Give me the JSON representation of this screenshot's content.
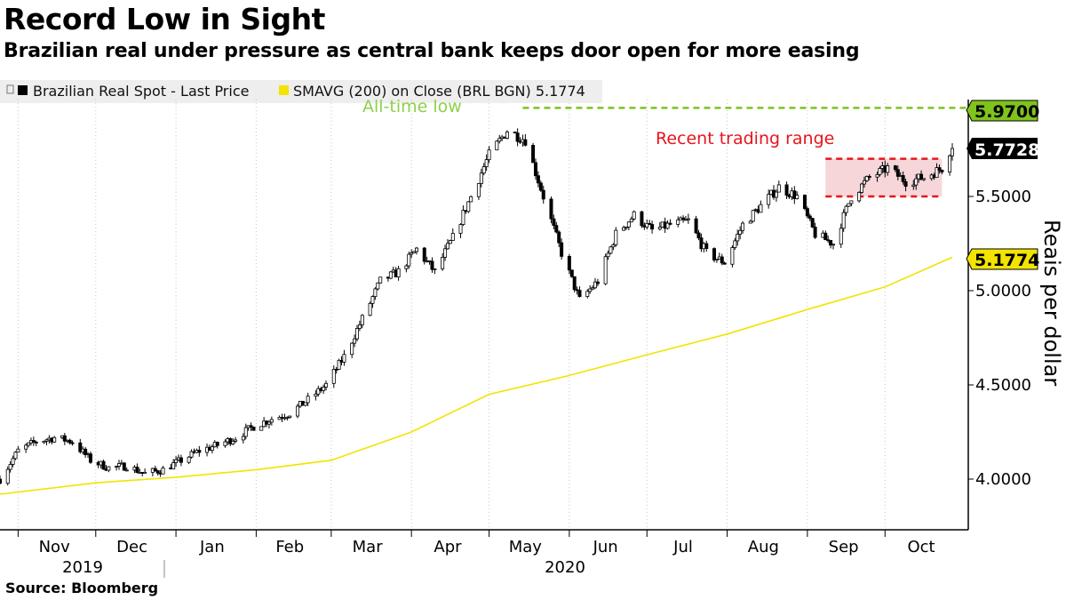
{
  "title": "Record Low in Sight",
  "subtitle": "Brazilian real under pressure as central bank keeps door open for more easing",
  "source": "Source: Bloomberg",
  "legend": [
    {
      "label": "Brazilian Real Spot - Last Price",
      "color": "#000000"
    },
    {
      "label": "SMAVG (200)  on Close (BRL BGN) 5.1774",
      "color": "#f2e400"
    }
  ],
  "colors": {
    "candle": "#000000",
    "sma": "#f2e400",
    "all_time_low": "#7fc31c",
    "range": "#e8141c",
    "range_fill": "#f6cfd4"
  },
  "annotations": {
    "all_time_low_label": "All-time low",
    "range_label": "Recent trading range",
    "all_time_low_tag": "5.9700",
    "last_price_tag": "5.7728",
    "sma_tag": "5.1774"
  },
  "chart_data": {
    "type": "candlestick",
    "title": "Record Low in Sight",
    "subtitle": "Brazilian real under pressure as central bank keeps door open for more easing",
    "ylabel": "Reais per dollar",
    "ylim": [
      3.7,
      6.05
    ],
    "yticks": [
      "4.0000",
      "4.5000",
      "5.0000",
      "5.5000"
    ],
    "xlabel_months": [
      "Nov",
      "Dec",
      "Jan",
      "Feb",
      "Mar",
      "Apr",
      "May",
      "Jun",
      "Jul",
      "Aug",
      "Sep",
      "Oct"
    ],
    "xlabel_years": [
      "2019",
      "2020"
    ],
    "x_start": "2019-10-25",
    "x_end": "2020-10-27",
    "grid": "vertical dotted",
    "legend_position": "top-left",
    "reference_lines": [
      {
        "name": "All-time low",
        "value": 5.97
      }
    ],
    "range_band": {
      "label": "Recent trading range",
      "low": 5.5,
      "high": 5.7,
      "from": "2020-09-08",
      "to": "2020-10-23"
    },
    "last_price": 5.7728,
    "series": [
      {
        "name": "Brazilian Real Spot - Last Price",
        "kind": "weekly close",
        "x": [
          "2019-10-25",
          "2019-11-01",
          "2019-11-08",
          "2019-11-15",
          "2019-11-22",
          "2019-11-29",
          "2019-12-06",
          "2019-12-13",
          "2019-12-20",
          "2019-12-27",
          "2020-01-03",
          "2020-01-10",
          "2020-01-17",
          "2020-01-24",
          "2020-01-31",
          "2020-02-07",
          "2020-02-14",
          "2020-02-21",
          "2020-02-28",
          "2020-03-06",
          "2020-03-13",
          "2020-03-20",
          "2020-03-27",
          "2020-04-03",
          "2020-04-10",
          "2020-04-17",
          "2020-04-24",
          "2020-05-01",
          "2020-05-08",
          "2020-05-15",
          "2020-05-22",
          "2020-05-29",
          "2020-06-05",
          "2020-06-12",
          "2020-06-19",
          "2020-06-26",
          "2020-07-03",
          "2020-07-10",
          "2020-07-17",
          "2020-07-24",
          "2020-07-31",
          "2020-08-07",
          "2020-08-14",
          "2020-08-21",
          "2020-08-28",
          "2020-09-04",
          "2020-09-11",
          "2020-09-18",
          "2020-09-25",
          "2020-10-02",
          "2020-10-09",
          "2020-10-16",
          "2020-10-23",
          "2020-10-27"
        ],
        "values": [
          4.0,
          4.15,
          4.2,
          4.22,
          4.2,
          4.1,
          4.06,
          4.07,
          4.03,
          4.05,
          4.1,
          4.15,
          4.18,
          4.22,
          4.28,
          4.32,
          4.35,
          4.42,
          4.5,
          4.65,
          4.85,
          5.05,
          5.1,
          5.22,
          5.1,
          5.28,
          5.5,
          5.72,
          5.85,
          5.8,
          5.5,
          5.2,
          4.95,
          5.05,
          5.3,
          5.4,
          5.32,
          5.35,
          5.37,
          5.2,
          5.15,
          5.35,
          5.45,
          5.55,
          5.5,
          5.3,
          5.25,
          5.5,
          5.6,
          5.65,
          5.58,
          5.6,
          5.65,
          5.7728
        ]
      },
      {
        "name": "SMAVG (200)  on Close (BRL BGN) 5.1774",
        "x": [
          "2019-10-25",
          "2019-12-01",
          "2020-01-01",
          "2020-02-01",
          "2020-03-01",
          "2020-04-01",
          "2020-05-01",
          "2020-06-01",
          "2020-07-01",
          "2020-08-01",
          "2020-09-01",
          "2020-10-01",
          "2020-10-27"
        ],
        "values": [
          3.92,
          3.98,
          4.01,
          4.05,
          4.1,
          4.25,
          4.45,
          4.55,
          4.66,
          4.77,
          4.9,
          5.02,
          5.1774
        ]
      }
    ]
  }
}
